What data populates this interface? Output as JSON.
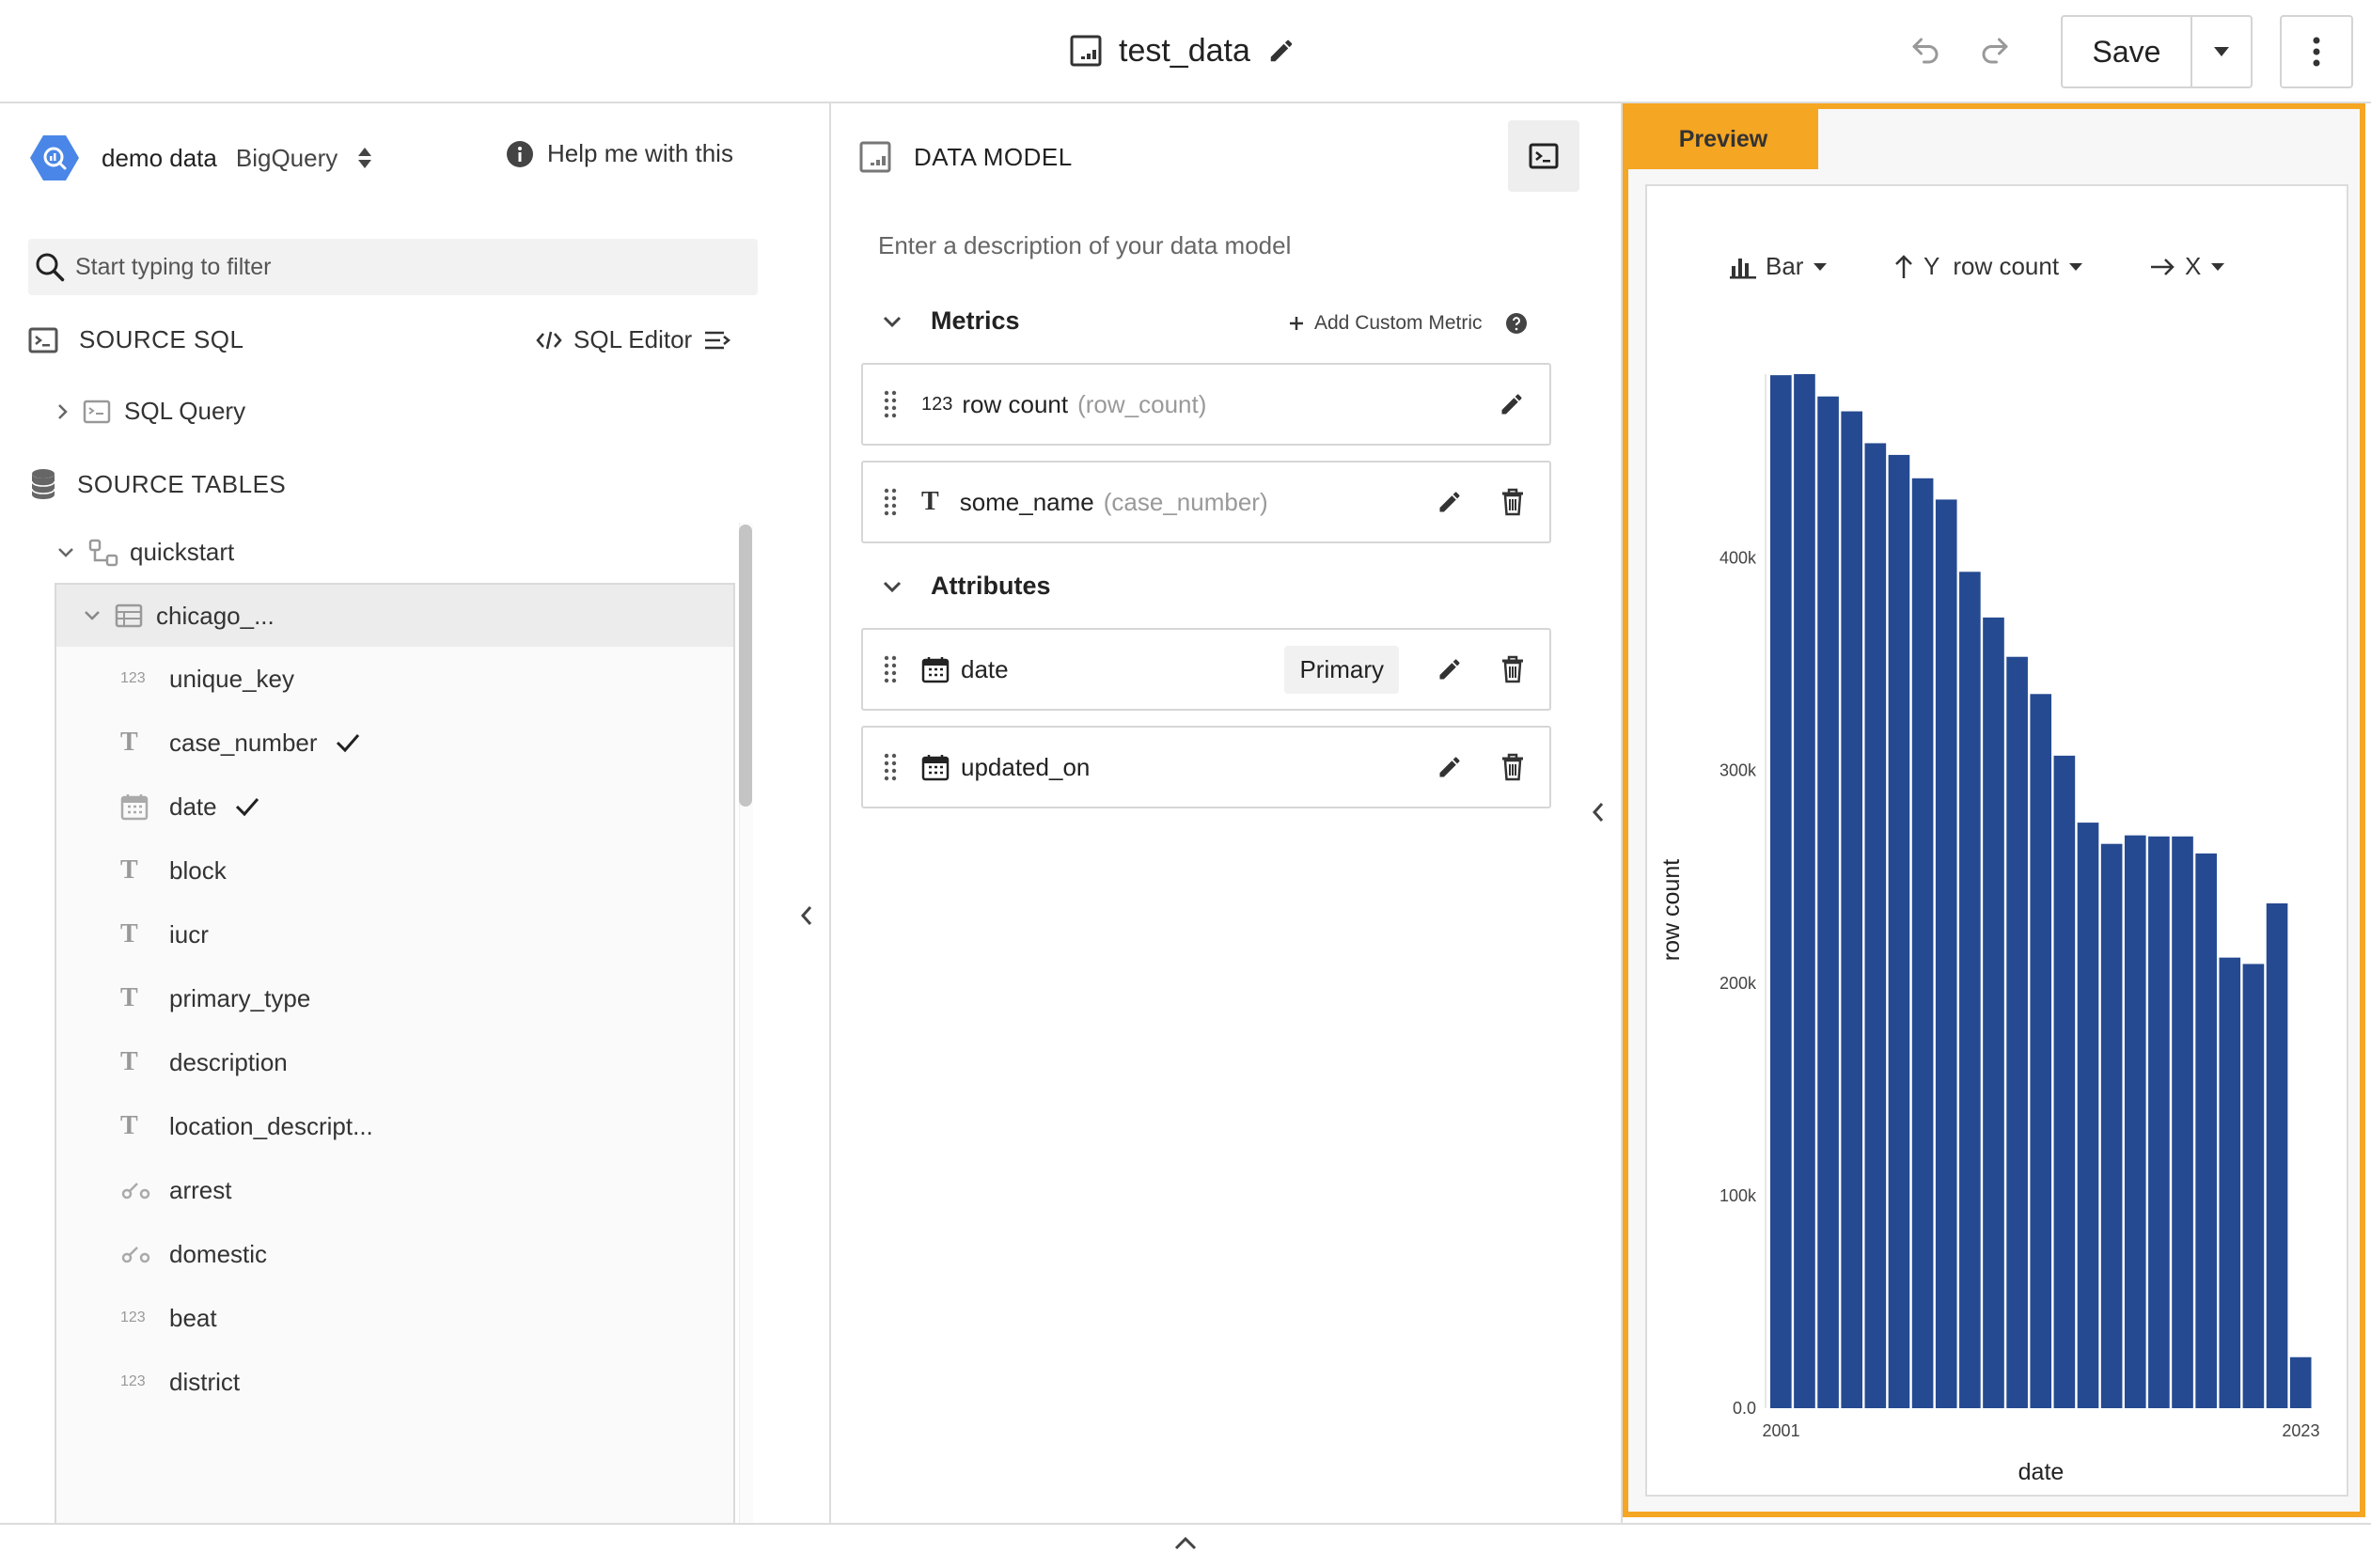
{
  "header": {
    "title": "test_data",
    "save_label": "Save"
  },
  "left": {
    "connection": {
      "name": "demo data",
      "type": "BigQuery"
    },
    "help_label": "Help me with this",
    "filter_placeholder": "Start typing to filter",
    "source_sql": {
      "label": "SOURCE SQL",
      "editor_label": "SQL Editor",
      "query_label": "SQL Query"
    },
    "source_tables": {
      "label": "SOURCE TABLES",
      "dataset": "quickstart",
      "table": "chicago_..."
    },
    "fields": [
      {
        "type": "123",
        "name": "unique_key",
        "checked": false
      },
      {
        "type": "T",
        "name": "case_number",
        "checked": true
      },
      {
        "type": "date",
        "name": "date",
        "checked": true
      },
      {
        "type": "T",
        "name": "block",
        "checked": false
      },
      {
        "type": "T",
        "name": "iucr",
        "checked": false
      },
      {
        "type": "T",
        "name": "primary_type",
        "checked": false
      },
      {
        "type": "T",
        "name": "description",
        "checked": false
      },
      {
        "type": "T",
        "name": "location_descript...",
        "checked": false
      },
      {
        "type": "bool",
        "name": "arrest",
        "checked": false
      },
      {
        "type": "bool",
        "name": "domestic",
        "checked": false
      },
      {
        "type": "123",
        "name": "beat",
        "checked": false
      },
      {
        "type": "123",
        "name": "district",
        "checked": false
      }
    ]
  },
  "model": {
    "title": "DATA MODEL",
    "description_placeholder": "Enter a description of your data model",
    "metrics_label": "Metrics",
    "add_metric_label": "Add Custom Metric",
    "metrics": [
      {
        "type_label": "123",
        "name": "row count",
        "source": "(row_count)"
      },
      {
        "type_label": "T",
        "name": "some_name",
        "source": "(case_number)"
      }
    ],
    "attributes_label": "Attributes",
    "attributes": [
      {
        "name": "date",
        "badge": "Primary"
      },
      {
        "name": "updated_on",
        "badge": ""
      }
    ]
  },
  "preview": {
    "tab_label": "Preview",
    "controls": {
      "type_label": "Bar",
      "y_label": "Y",
      "y_value": "row count",
      "x_label": "X"
    }
  },
  "colors": {
    "accent": "#f5a623",
    "bar": "#254a91",
    "logo": "#4a86e8"
  },
  "chart_data": {
    "type": "bar",
    "x": [
      2001,
      2002,
      2003,
      2004,
      2005,
      2006,
      2007,
      2008,
      2009,
      2010,
      2011,
      2012,
      2013,
      2014,
      2015,
      2016,
      2017,
      2018,
      2019,
      2020,
      2021,
      2022,
      2023
    ],
    "values": [
      486000,
      486500,
      476000,
      469000,
      454000,
      448500,
      437500,
      427500,
      393500,
      372000,
      353500,
      336000,
      307000,
      275500,
      265500,
      269500,
      269000,
      269000,
      261000,
      212000,
      209000,
      237500,
      24000
    ],
    "xlabel": "date",
    "ylabel": "row count",
    "x_ticks": [
      "2001",
      "2023"
    ],
    "y_ticks": [
      {
        "value": 0,
        "label": "0.0"
      },
      {
        "value": 100000,
        "label": "100k"
      },
      {
        "value": 200000,
        "label": "200k"
      },
      {
        "value": 300000,
        "label": "300k"
      },
      {
        "value": 400000,
        "label": "400k"
      }
    ],
    "ylim": [
      0,
      486500
    ],
    "grid": false
  }
}
